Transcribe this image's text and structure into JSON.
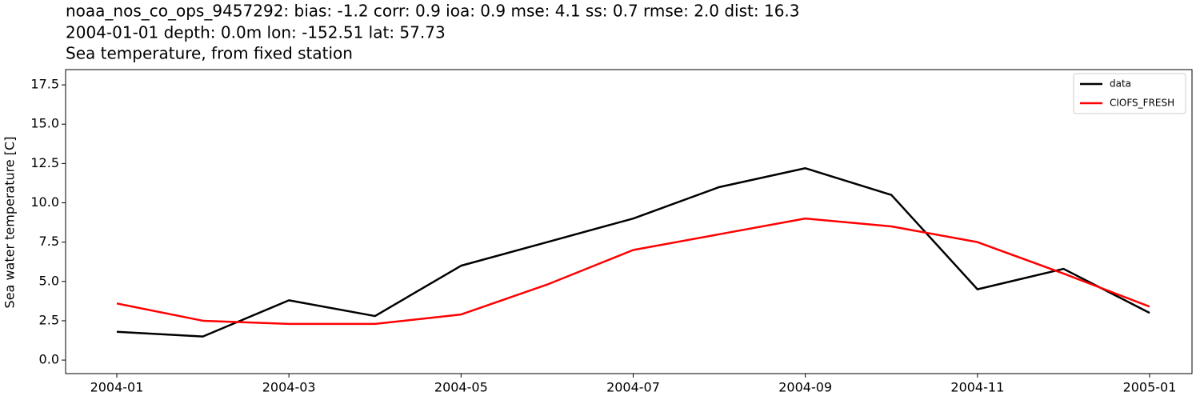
{
  "chart_data": {
    "type": "line",
    "title": "noaa_nos_co_ops_9457292: bias: -1.2  corr: 0.9  ioa: 0.9  mse: 4.1  ss: 0.7  rmse: 2.0  dist: 16.3",
    "subtitle": "2004-01-01 depth: 0.0m lon: -152.51 lat: 57.73",
    "subtitle2": "Sea temperature, from fixed station",
    "y_label": "Sea water temperature [C]",
    "x": [
      "2004-01",
      "2004-02",
      "2004-03",
      "2004-04",
      "2004-05",
      "2004-06",
      "2004-07",
      "2004-08",
      "2004-09",
      "2004-10",
      "2004-11",
      "2004-12",
      "2005-01"
    ],
    "series": [
      {
        "name": "data",
        "color": "#000000",
        "values": [
          1.8,
          1.5,
          3.8,
          2.8,
          6.0,
          7.5,
          9.0,
          11.0,
          12.2,
          10.5,
          4.5,
          5.8,
          3.0
        ]
      },
      {
        "name": "CIOFS_FRESH",
        "color": "#ff0000",
        "values": [
          3.6,
          2.5,
          2.3,
          2.3,
          2.9,
          4.8,
          7.0,
          8.0,
          9.0,
          8.5,
          7.5,
          5.5,
          3.4
        ]
      }
    ],
    "xlim": [
      "2004-01",
      "2005-01"
    ],
    "xticks": [
      "2004-01",
      "2004-03",
      "2004-05",
      "2004-07",
      "2004-09",
      "2004-11",
      "2005-01"
    ],
    "ylim": [
      -0.86,
      18.47
    ],
    "yticks": [
      {
        "value": 0,
        "label": "0.0"
      },
      2.5,
      {
        "value": 5,
        "label": "5.0"
      },
      7.5,
      {
        "value": 10,
        "label": "10.0"
      },
      12.5,
      {
        "value": 15,
        "label": "15.0"
      },
      17.5
    ],
    "legend": "upper right"
  }
}
